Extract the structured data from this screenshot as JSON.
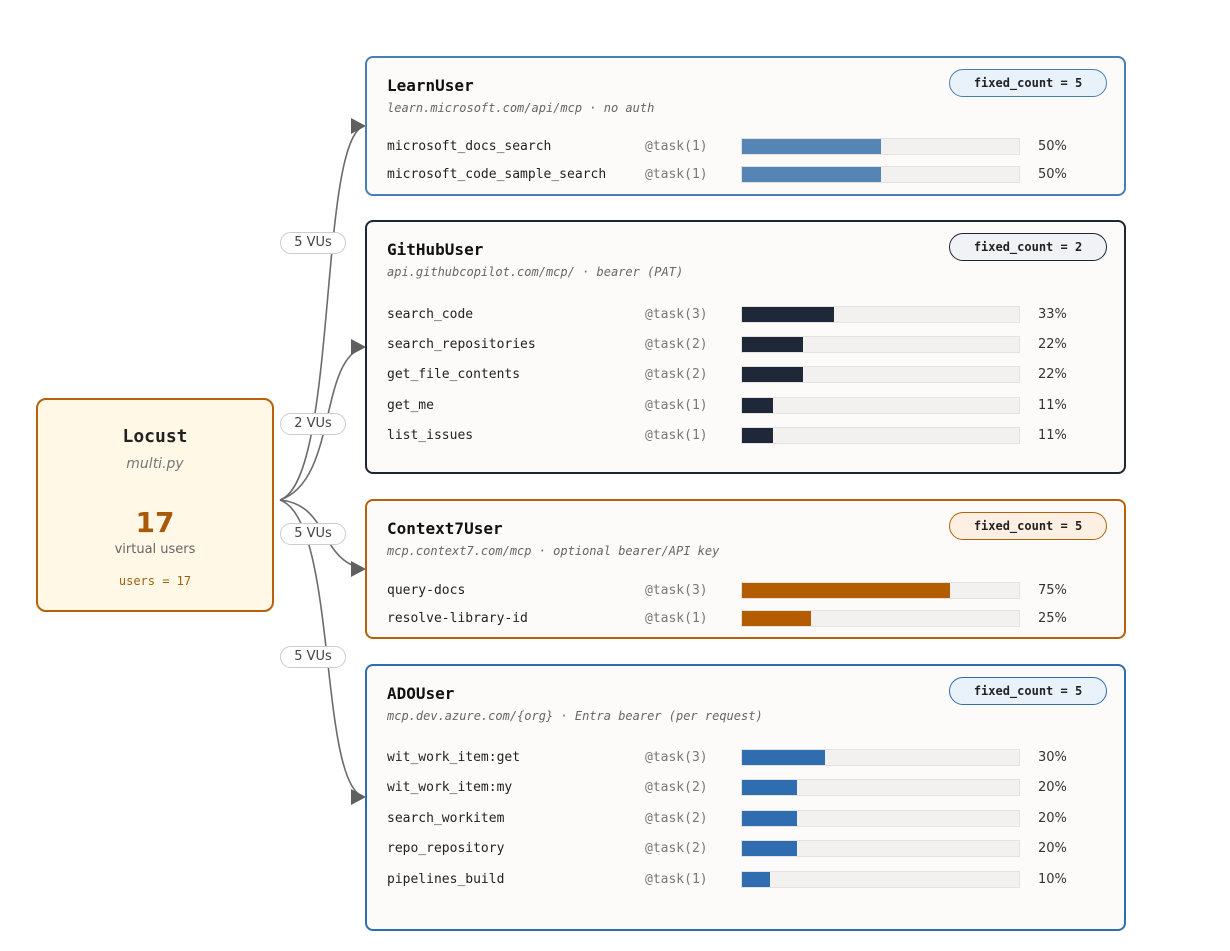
{
  "source": {
    "title": "Locust",
    "file": "multi.py",
    "count": "17",
    "count_label": "virtual users",
    "users_expr": "users = 17"
  },
  "edges": [
    {
      "label": "5 VUs"
    },
    {
      "label": "2 VUs"
    },
    {
      "label": "5 VUs"
    },
    {
      "label": "5 VUs"
    }
  ],
  "cards": [
    {
      "title": "LearnUser",
      "url": "learn.microsoft.com/api/mcp · no auth",
      "fixed_count": "fixed_count = 5",
      "border": "#4a7fb5",
      "pill_bg": "#e9f2fa",
      "pill_border": "#4a7fb5",
      "bar": "#5585b5",
      "tasks": [
        {
          "name": "microsoft_docs_search",
          "weight": "@task(1)",
          "pct": "50%",
          "share": 0.5
        },
        {
          "name": "microsoft_code_sample_search",
          "weight": "@task(1)",
          "pct": "50%",
          "share": 0.5
        }
      ]
    },
    {
      "title": "GitHubUser",
      "url": "api.githubcopilot.com/mcp/ · bearer (PAT)",
      "fixed_count": "fixed_count = 2",
      "border": "#1e2533",
      "pill_bg": "#f0f2f5",
      "pill_border": "#1e2533",
      "bar": "#1f2838",
      "tasks": [
        {
          "name": "search_code",
          "weight": "@task(3)",
          "pct": "33%",
          "share": 0.333
        },
        {
          "name": "search_repositories",
          "weight": "@task(2)",
          "pct": "22%",
          "share": 0.222
        },
        {
          "name": "get_file_contents",
          "weight": "@task(2)",
          "pct": "22%",
          "share": 0.222
        },
        {
          "name": "get_me",
          "weight": "@task(1)",
          "pct": "11%",
          "share": 0.111
        },
        {
          "name": "list_issues",
          "weight": "@task(1)",
          "pct": "11%",
          "share": 0.111
        }
      ]
    },
    {
      "title": "Context7User",
      "url": "mcp.context7.com/mcp · optional bearer/API key",
      "fixed_count": "fixed_count = 5",
      "border": "#b5620a",
      "pill_bg": "#fdf0e2",
      "pill_border": "#b5620a",
      "bar": "#b45c00",
      "tasks": [
        {
          "name": "query-docs",
          "weight": "@task(3)",
          "pct": "75%",
          "share": 0.75
        },
        {
          "name": "resolve-library-id",
          "weight": "@task(1)",
          "pct": "25%",
          "share": 0.25
        }
      ]
    },
    {
      "title": "ADOUser",
      "url": "mcp.dev.azure.com/{org} · Entra bearer (per request)",
      "fixed_count": "fixed_count = 5",
      "border": "#2e6db0",
      "pill_bg": "#e9f2fa",
      "pill_border": "#2e6db0",
      "bar": "#2f6cb0",
      "tasks": [
        {
          "name": "wit_work_item:get",
          "weight": "@task(3)",
          "pct": "30%",
          "share": 0.3
        },
        {
          "name": "wit_work_item:my",
          "weight": "@task(2)",
          "pct": "20%",
          "share": 0.2
        },
        {
          "name": "search_workitem",
          "weight": "@task(2)",
          "pct": "20%",
          "share": 0.2
        },
        {
          "name": "repo_repository",
          "weight": "@task(2)",
          "pct": "20%",
          "share": 0.2
        },
        {
          "name": "pipelines_build",
          "weight": "@task(1)",
          "pct": "10%",
          "share": 0.1
        }
      ]
    }
  ]
}
